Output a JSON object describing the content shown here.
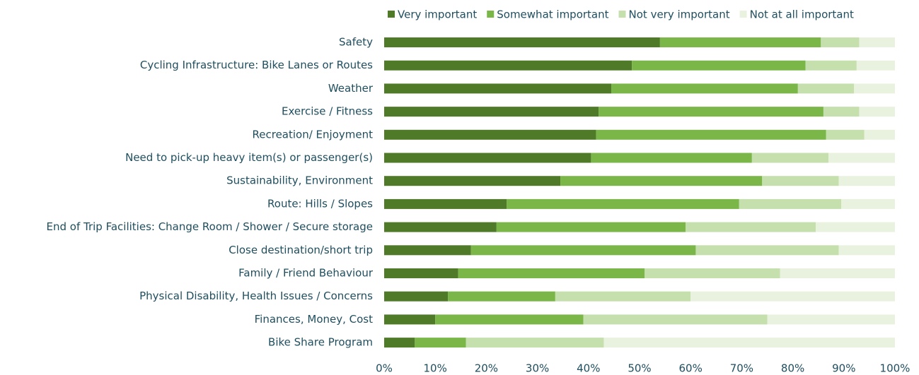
{
  "chart_data": {
    "type": "stacked-bar-horizontal",
    "categories": [
      "Safety",
      "Cycling Infrastructure: Bike Lanes or Routes",
      "Weather",
      "Exercise / Fitness",
      "Recreation/ Enjoyment",
      "Need to pick-up heavy item(s) or passenger(s)",
      "Sustainability, Environment",
      "Route: Hills / Slopes",
      "End of Trip Facilities: Change Room / Shower / Secure storage",
      "Close destination/short trip",
      "Family / Friend Behaviour",
      "Physical Disability, Health Issues / Concerns",
      "Finances, Money, Cost",
      "Bike Share Program"
    ],
    "series": [
      {
        "name": "Very important",
        "color": "#4f7a28",
        "values": [
          54,
          48.5,
          44.5,
          42,
          41.5,
          40.5,
          34.5,
          24,
          22,
          17,
          14.5,
          12.5,
          10,
          6
        ]
      },
      {
        "name": "Somewhat important",
        "color": "#7ab648",
        "values": [
          31.5,
          34,
          36.5,
          44,
          45,
          31.5,
          39.5,
          45.5,
          37,
          44,
          36.5,
          21,
          29,
          10
        ]
      },
      {
        "name": "Not very important",
        "color": "#c5dfad",
        "values": [
          7.5,
          10,
          11,
          7,
          7.5,
          15,
          15,
          20,
          25.5,
          28,
          26.5,
          26.5,
          36,
          27
        ]
      },
      {
        "name": "Not at all important",
        "color": "#e9f2df",
        "values": [
          7,
          7.5,
          8,
          7,
          6,
          13,
          11,
          10.5,
          15.5,
          11,
          22.5,
          40,
          25,
          57
        ]
      }
    ],
    "xlim": [
      0,
      100
    ],
    "xticks": [
      {
        "value": 0,
        "label": "0%"
      },
      {
        "value": 10,
        "label": "10%"
      },
      {
        "value": 20,
        "label": "20%"
      },
      {
        "value": 30,
        "label": "30%"
      },
      {
        "value": 40,
        "label": "40%"
      },
      {
        "value": 50,
        "label": "50%"
      },
      {
        "value": 60,
        "label": "60%"
      },
      {
        "value": 70,
        "label": "70%"
      },
      {
        "value": 80,
        "label": "80%"
      },
      {
        "value": 90,
        "label": "90%"
      },
      {
        "value": 100,
        "label": "100%"
      }
    ],
    "legend": "top"
  }
}
